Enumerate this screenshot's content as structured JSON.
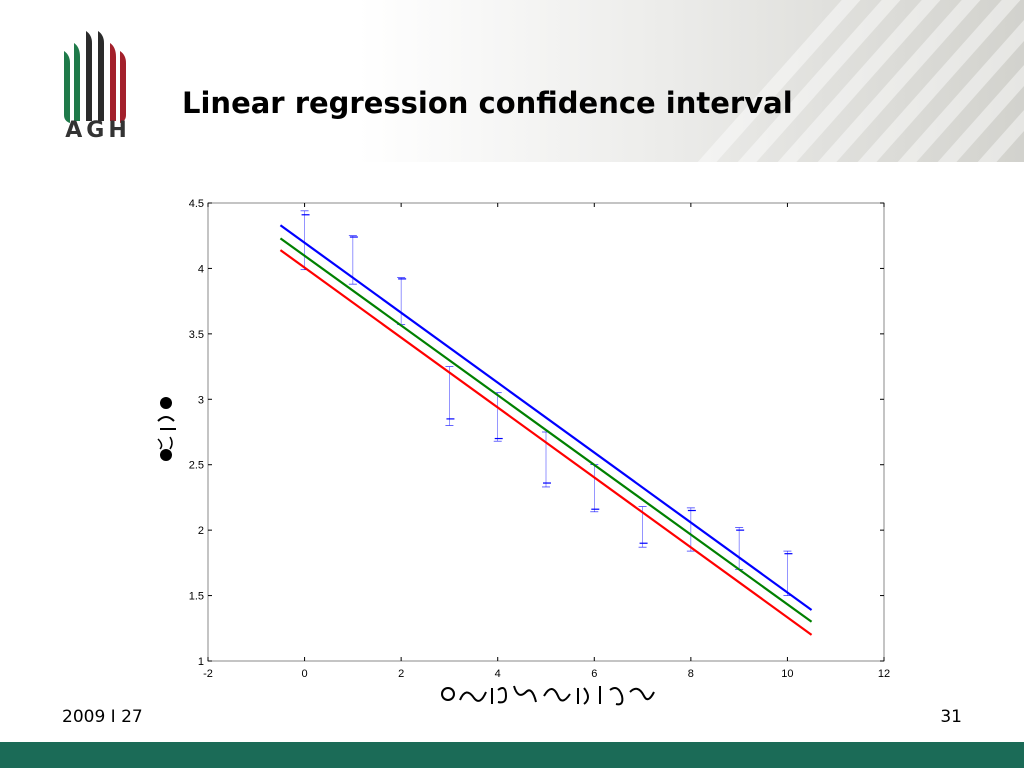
{
  "slide": {
    "logo_text": "AGH",
    "title": "Linear regression confidence interval",
    "date": "2009 I 27",
    "page_number": "31"
  },
  "colors": {
    "footer_band": "#1b6b57",
    "logo_green": "#1f7a4a",
    "logo_dark": "#2b2b2b",
    "logo_red": "#a3202b",
    "upper_line": "#0000ff",
    "fit_line": "#008000",
    "lower_line": "#ff0000",
    "errorbar": "#0000ff"
  },
  "chart_data": {
    "type": "line",
    "title": "",
    "xlabel": "",
    "ylabel": "",
    "xlim": [
      -2,
      12
    ],
    "ylim": [
      1,
      4.5
    ],
    "xticks": [
      "-2",
      "0",
      "2",
      "4",
      "6",
      "8",
      "10",
      "12"
    ],
    "yticks": [
      "1",
      "1.5",
      "2",
      "2.5",
      "3",
      "3.5",
      "4",
      "4.5"
    ],
    "grid": false,
    "series": [
      {
        "color": "#0000ff",
        "x": [
          -0.5,
          10.5
        ],
        "y": [
          4.33,
          1.39
        ]
      },
      {
        "color": "#008000",
        "x": [
          -0.5,
          10.5
        ],
        "y": [
          4.23,
          1.3
        ]
      },
      {
        "color": "#ff0000",
        "x": [
          -0.5,
          10.5
        ],
        "y": [
          4.14,
          1.2
        ]
      }
    ],
    "errorbars": {
      "x": [
        0,
        1,
        2,
        3,
        4,
        5,
        6,
        7,
        8,
        9,
        10
      ],
      "y": [
        4.41,
        4.24,
        3.92,
        2.85,
        2.7,
        2.36,
        2.16,
        1.9,
        2.15,
        2.0,
        1.82
      ],
      "ylow": [
        3.99,
        3.88,
        3.57,
        2.8,
        2.68,
        2.33,
        2.14,
        1.87,
        1.84,
        1.7,
        1.5
      ],
      "yhigh": [
        4.44,
        4.25,
        3.93,
        3.25,
        3.05,
        2.75,
        2.5,
        2.18,
        2.17,
        2.02,
        1.84
      ]
    }
  }
}
